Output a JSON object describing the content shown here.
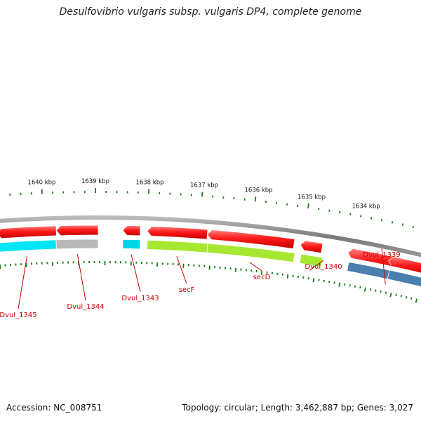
{
  "title": "Desulfovibrio vulgaris subsp. vulgaris DP4, complete genome",
  "accession": "Accession: NC_008751",
  "summary": "Topology: circular; Length: 3,462,887 bp; Genes: 3,027",
  "kbp_labels": [
    "1640 kbp",
    "1639 kbp",
    "1638 kbp",
    "1637 kbp",
    "1636 kbp",
    "1635 kbp",
    "1634 kbp"
  ],
  "genes": [
    {
      "label": "Dvul_1345",
      "cog_color": "#00e5f5"
    },
    {
      "label": "Dvul_1344",
      "cog_color": "#b8b8b8"
    },
    {
      "label": "Dvul_1343",
      "cog_color": "#00d5e5"
    },
    {
      "label": "secF",
      "cog_color": "#a6e831"
    },
    {
      "label": "secD",
      "cog_color": "#a6e831"
    },
    {
      "label": "Dvul_1340",
      "cog_color": "#a6e831"
    },
    {
      "label": "Dvul_1339",
      "cog_color": "#4a7fb0"
    }
  ],
  "colors": {
    "gene_strand": "#ee1111",
    "backbone": "#808080",
    "ticks": "#1a7a1a",
    "label": "#cc0000"
  }
}
